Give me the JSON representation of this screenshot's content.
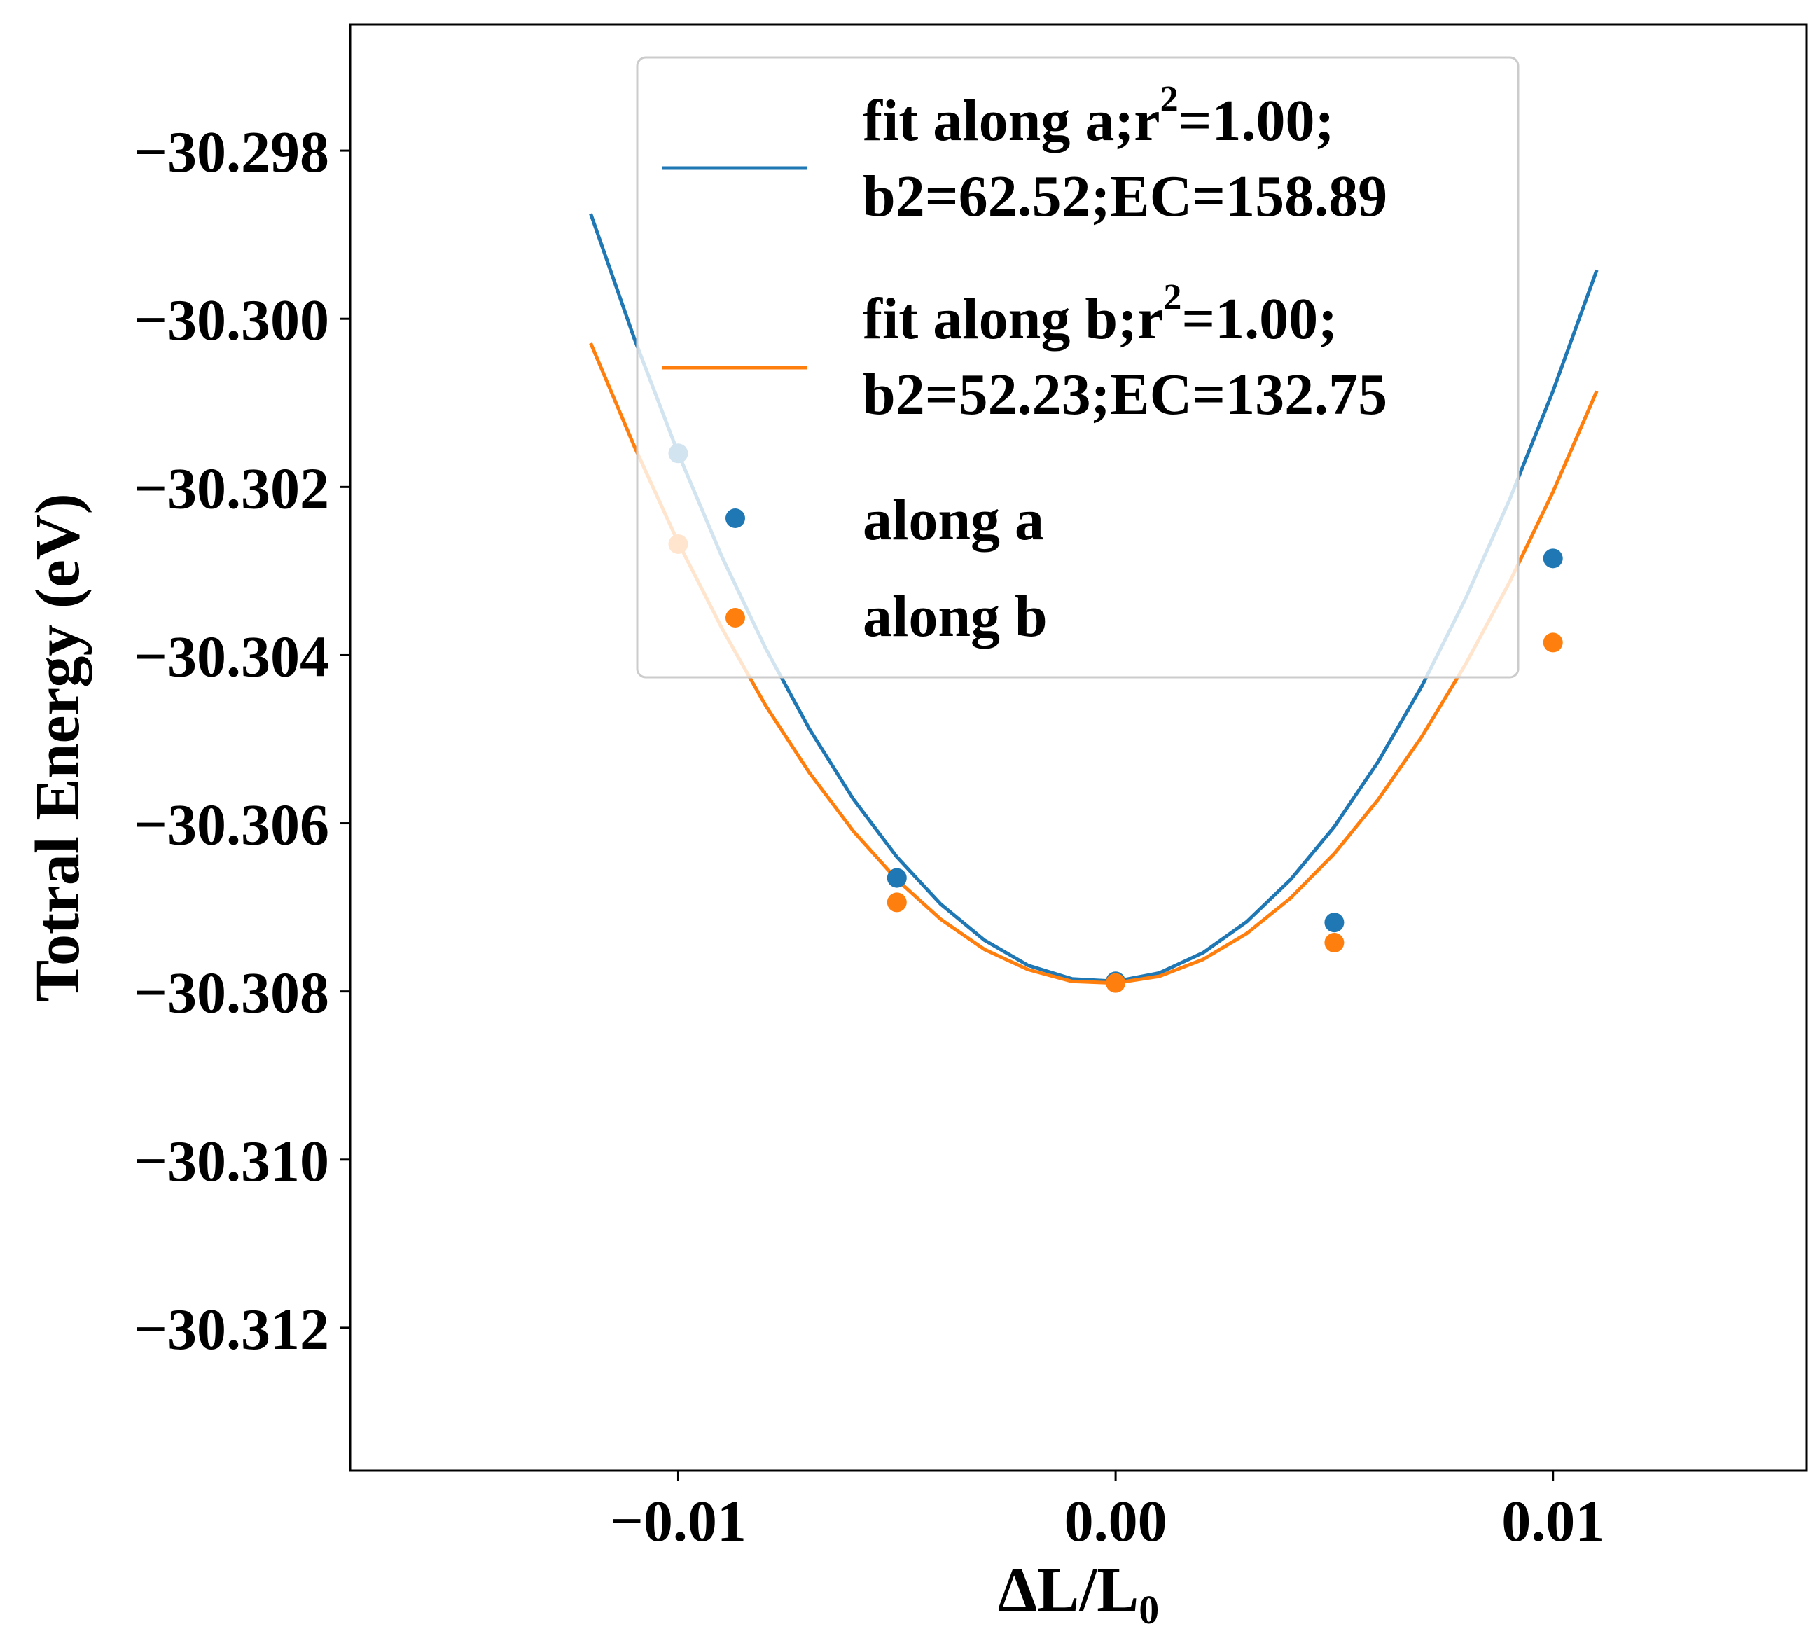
{
  "chart_data": {
    "type": "line",
    "title": "",
    "xlabel": "ΔL/L",
    "xlabel_subscript": "0",
    "ylabel": "Totral Energy (eV)",
    "xlim": [
      -0.0175,
      0.0158
    ],
    "ylim": [
      -30.3137,
      -30.2965
    ],
    "x_ticks": [
      -0.01,
      0.0,
      0.01
    ],
    "x_tick_labels": [
      "−0.01",
      "0.00",
      "0.01"
    ],
    "y_ticks": [
      -30.298,
      -30.3,
      -30.302,
      -30.304,
      -30.306,
      -30.308,
      -30.31,
      -30.312
    ],
    "y_tick_labels": [
      "−30.298",
      "−30.300",
      "−30.302",
      "−30.304",
      "−30.306",
      "−30.308",
      "−30.310",
      "−30.312"
    ],
    "grid": false,
    "legend_position": "top-center",
    "series": [
      {
        "name": "fit along a;r=1.00;",
        "name_parts": [
          "fit along a;r",
          "2",
          "=1.00;"
        ],
        "name_line2": "b2=62.52;EC=158.89",
        "kind": "line",
        "color": "#1f77b4",
        "x": [
          -0.012,
          -0.011,
          -0.01,
          -0.009,
          -0.008,
          -0.007,
          -0.006,
          -0.005,
          -0.004,
          -0.003,
          -0.002,
          -0.001,
          0.0,
          0.001,
          0.002,
          0.003,
          0.004,
          0.005,
          0.006,
          0.007,
          0.008,
          0.009,
          0.01,
          0.011
        ],
        "y": [
          -30.29875,
          -30.30024,
          -30.3016,
          -30.30283,
          -30.30392,
          -30.30488,
          -30.30571,
          -30.3064,
          -30.30696,
          -30.30739,
          -30.30769,
          -30.30785,
          -30.30788,
          -30.30778,
          -30.30754,
          -30.30717,
          -30.30667,
          -30.30604,
          -30.30527,
          -30.30437,
          -30.30333,
          -30.30216,
          -30.30086,
          -30.29942
        ]
      },
      {
        "name": "fit along b;r=1.00;",
        "name_parts": [
          "fit along b;r",
          "2",
          "=1.00;"
        ],
        "name_line2": "b2=52.23;EC=132.75",
        "kind": "line",
        "color": "#ff7f0e",
        "x": [
          -0.012,
          -0.011,
          -0.01,
          -0.009,
          -0.008,
          -0.007,
          -0.006,
          -0.005,
          -0.004,
          -0.003,
          -0.002,
          -0.001,
          0.0,
          0.001,
          0.002,
          0.003,
          0.004,
          0.005,
          0.006,
          0.007,
          0.008,
          0.009,
          0.01,
          0.011
        ],
        "y": [
          -30.30029,
          -30.30152,
          -30.30266,
          -30.30368,
          -30.3046,
          -30.3054,
          -30.30609,
          -30.30667,
          -30.30714,
          -30.3075,
          -30.30774,
          -30.30788,
          -30.3079,
          -30.30782,
          -30.30762,
          -30.30731,
          -30.30689,
          -30.30636,
          -30.30572,
          -30.30497,
          -30.30411,
          -30.30314,
          -30.30206,
          -30.30086
        ]
      },
      {
        "name": "along a",
        "kind": "scatter",
        "color": "#1f77b4",
        "x": [
          -0.01,
          -0.005,
          0.0,
          0.005,
          0.01
        ],
        "y": [
          -30.3016,
          -30.30665,
          -30.30788,
          -30.30718,
          -30.30285
        ]
      },
      {
        "name": "along b",
        "kind": "scatter",
        "color": "#ff7f0e",
        "x": [
          -0.01,
          -0.005,
          0.0,
          0.005,
          0.01
        ],
        "y": [
          -30.30268,
          -30.30694,
          -30.3079,
          -30.30742,
          -30.30385
        ]
      }
    ]
  }
}
